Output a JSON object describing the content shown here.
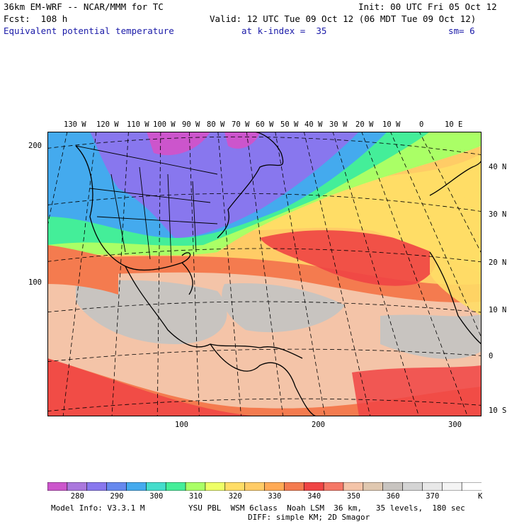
{
  "header": {
    "model_line": "36km EM-WRF -- NCAR/MMM for TC",
    "init_line": "Init: 00 UTC Fri 05 Oct 12",
    "fcst_line": "Fcst:  108 h",
    "valid_line": "Valid: 12 UTC Tue 09 Oct 12 (06 MDT Tue 09 Oct 12)",
    "field_name": "Equivalent potential temperature",
    "kindex_text": "at k-index =  35",
    "smooth_text": "sm= 6"
  },
  "map": {
    "top_longitude_labels": [
      "130 W",
      "120 W",
      "110 W",
      "100 W",
      "90 W",
      "80 W",
      "70 W",
      "60 W",
      "50 W",
      "40 W",
      "30 W",
      "20 W",
      "10 W",
      "0",
      "10 E"
    ],
    "right_latitude_labels": [
      "40 N",
      "30 N",
      "20 N",
      "10 N",
      "0",
      "10 S"
    ],
    "left_grid_labels": [
      "200",
      "100"
    ],
    "bottom_grid_labels": [
      "100",
      "200",
      "300"
    ],
    "contour_colors": {
      "cold_280": "#cc55cc",
      "cool_300": "#44aaee",
      "mild_310": "#44ee99",
      "warm_330": "#ffcc66",
      "hot_340": "#f04444",
      "land_line": "#000000"
    }
  },
  "colorbar": {
    "colors": [
      "#cc55cc",
      "#aa77dd",
      "#8877ee",
      "#6688ee",
      "#44aaee",
      "#44ddcc",
      "#44ee99",
      "#aaff66",
      "#eeff66",
      "#ffdd66",
      "#ffcc66",
      "#ffaa55",
      "#f47b4f",
      "#f04444",
      "#f57766",
      "#f4c4a8",
      "#e0c8b0",
      "#c8c4c0",
      "#d4d4d4",
      "#e8e8e8",
      "#f4f4f4",
      "#ffffff"
    ],
    "labels": [
      "280",
      "290",
      "300",
      "310",
      "320",
      "330",
      "340",
      "350",
      "360",
      "370"
    ],
    "unit": "K"
  },
  "footer": {
    "model_info": "Model Info: V3.3.1 M",
    "physics_line": "YSU PBL  WSM 6class  Noah LSM  36 km,   35 levels,  180 sec",
    "diff_line": "DIFF: simple KM; 2D Smagor"
  }
}
